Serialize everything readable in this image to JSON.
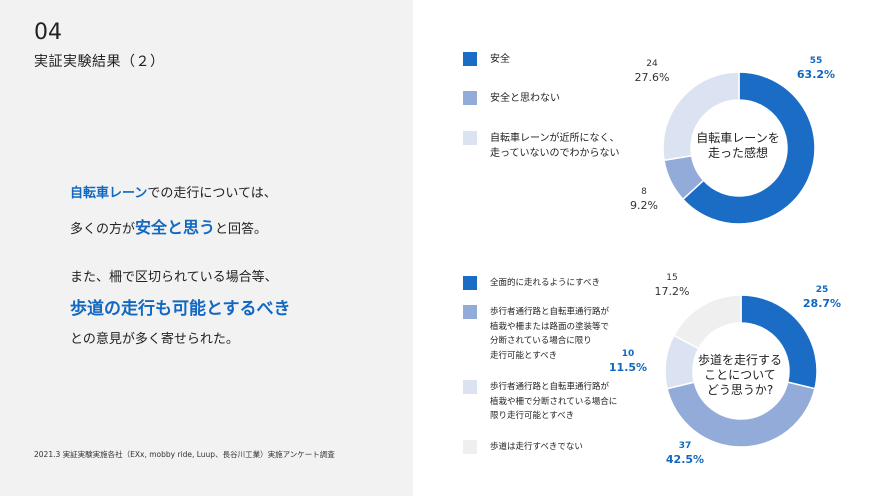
{
  "header": {
    "number": "04",
    "title": "実証実験結果（２）"
  },
  "message": {
    "line1_hl": "自転車レーン",
    "line1_rest": "での走行については、",
    "line2_pre": "多くの方が",
    "line2_hl": "安全と思う",
    "line2_post": "と回答。",
    "line3": "また、柵で区切られている場合等、",
    "line4": "歩道の走行も可能とするべき",
    "line5": "との意見が多く寄せられた。"
  },
  "footnote": "2021.3 実証実験実施各社（EXx, mobby ride, Luup、長谷川工業）実施アンケート調査",
  "chart_data": [
    {
      "type": "pie",
      "title": "自転車レーンを\n走った感想",
      "categories": [
        "安全",
        "安全と思わない",
        "自転車レーンが近所になく、\n走っていないのでわからない"
      ],
      "values": [
        55,
        8,
        24
      ],
      "percent_labels": [
        "63.2%",
        "9.2%",
        "27.6%"
      ],
      "colors": [
        "#1a6cc4",
        "#93abd9",
        "#dbe2f1"
      ],
      "legend_placement": "left"
    },
    {
      "type": "pie",
      "title": "歩道を走行する\nことについて\nどう思うか?",
      "categories": [
        "全面的に走れるようにすべき",
        "歩行者通行路と自転車通行路が\n植栽や柵または路面の塗装等で\n分断されている場合に限り\n走行可能とすべき",
        "歩行者通行路と自転車通行路が\n植栽や柵で分断されている場合に\n限り走行可能とすべき",
        "歩道は走行すべきでない"
      ],
      "values": [
        25,
        37,
        10,
        15
      ],
      "percent_labels": [
        "28.7%",
        "42.5%",
        "11.5%",
        "17.2%"
      ],
      "colors": [
        "#1a6cc4",
        "#93abd9",
        "#dbe2f1",
        "#efefef"
      ],
      "legend_placement": "left"
    }
  ]
}
